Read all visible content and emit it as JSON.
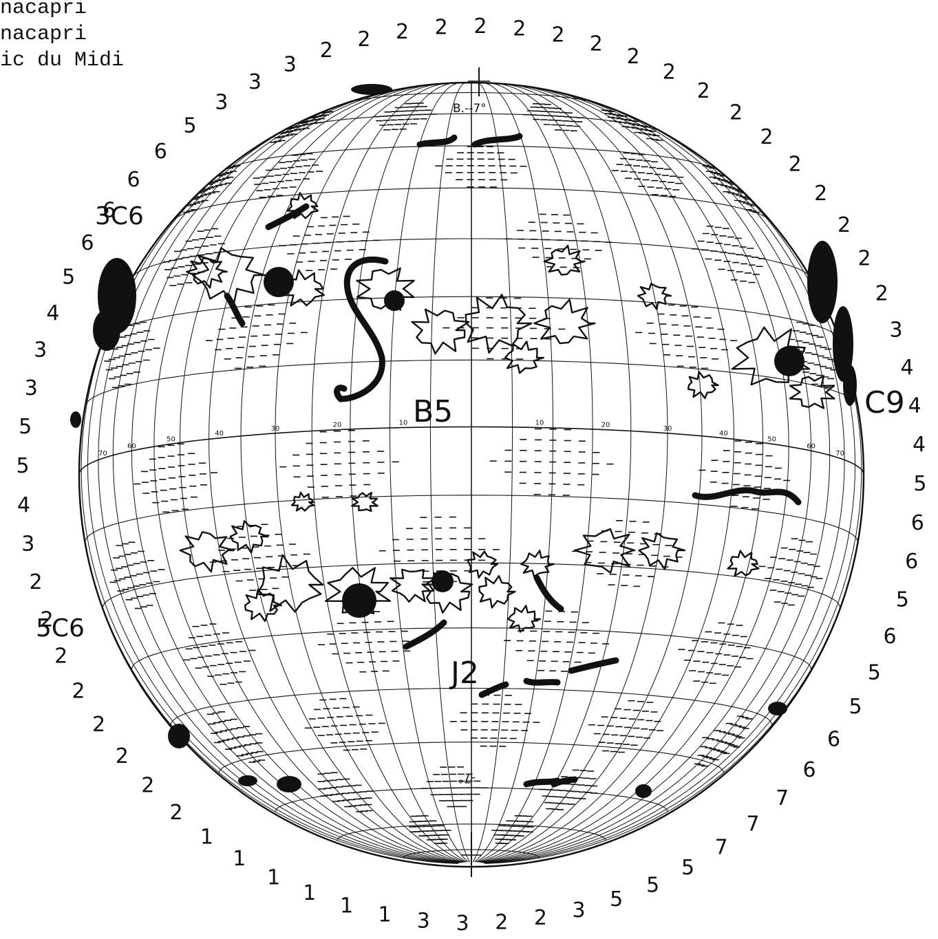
{
  "header": {
    "lines": [
      "nacapri",
      "nacapri",
      "ic du Midi"
    ]
  },
  "chart_annotations": {
    "b_angle_top": "B.--7°",
    "b_angle_bottom": "-7°",
    "region_labels": [
      "B5",
      "C9",
      "3C6",
      "5C6",
      "J2"
    ]
  },
  "longitude_ticks": [
    "70",
    "60",
    "50",
    "40",
    "30",
    "20",
    "10",
    "10",
    "20",
    "30",
    "40",
    "50",
    "60",
    "70"
  ],
  "rim_values": [
    "2",
    "2",
    "2",
    "2",
    "2",
    "2",
    "2",
    "2",
    "2",
    "2",
    "2",
    "2",
    "2",
    "2",
    "3",
    "4",
    "4",
    "4",
    "5",
    "6",
    "6",
    "5",
    "6",
    "5",
    "5",
    "6",
    "6",
    "7",
    "7",
    "7",
    "5",
    "5",
    "5",
    "3",
    "2",
    "2",
    "3",
    "3",
    "1",
    "1",
    "1",
    "1",
    "1",
    "1",
    "2",
    "2",
    "2",
    "2",
    "2",
    "2",
    "2",
    "2",
    "3",
    "4",
    "5",
    "5",
    "3",
    "3",
    "4",
    "5",
    "6",
    "6",
    "6",
    "6",
    "5",
    "3",
    "3",
    "3",
    "2",
    "2",
    "2",
    "2"
  ],
  "colors": {
    "ink": "#111111",
    "background": "#ffffff"
  }
}
